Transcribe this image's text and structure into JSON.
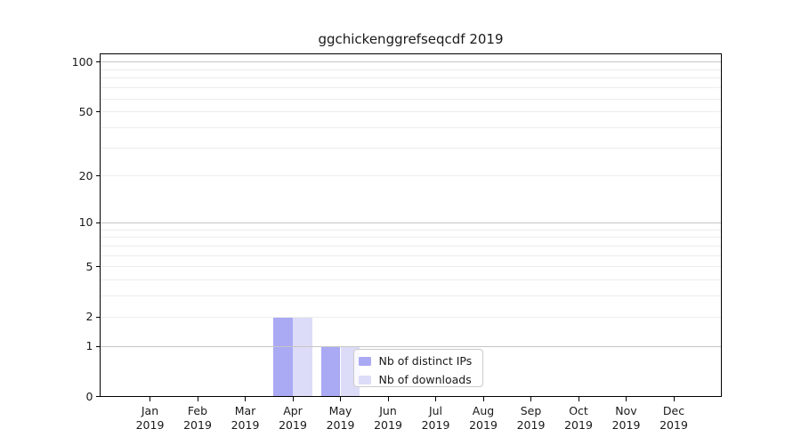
{
  "chart_data": {
    "type": "bar",
    "title": "ggchickenggrefseqcdf 2019",
    "categories": [
      "Jan",
      "Feb",
      "Mar",
      "Apr",
      "May",
      "Jun",
      "Jul",
      "Aug",
      "Sep",
      "Oct",
      "Nov",
      "Dec"
    ],
    "x_tick_year": "2019",
    "series": [
      {
        "name": "Nb of distinct IPs",
        "color": "#a9a9f4",
        "values": [
          0,
          0,
          0,
          2,
          1,
          0,
          0,
          0,
          0,
          0,
          0,
          0
        ]
      },
      {
        "name": "Nb of downloads",
        "color": "#dcdcf8",
        "values": [
          0,
          0,
          0,
          2,
          1,
          0,
          0,
          0,
          0,
          0,
          0,
          0
        ]
      }
    ],
    "yscale": "log1p",
    "ylim": [
      0,
      100
    ],
    "y_headroom_value": 112.5,
    "yticks": [
      0,
      1,
      2,
      5,
      10,
      20,
      50,
      100
    ],
    "grid_major_values": [
      1,
      10,
      100
    ],
    "grid_minor_values": [
      2,
      3,
      4,
      5,
      6,
      7,
      8,
      9,
      20,
      30,
      40,
      50,
      60,
      70,
      80,
      90
    ],
    "grid_on": true,
    "legend_position": "inside-bottom-center",
    "colors": {
      "grid_major": "#c6c6c6",
      "grid_minor": "#ededed",
      "axis": "#000000",
      "text": "#1a1a1a",
      "legend_border": "#cbcbcb",
      "legend_bg": "rgba(255,255,255,0.8)",
      "background": "#ffffff"
    }
  }
}
